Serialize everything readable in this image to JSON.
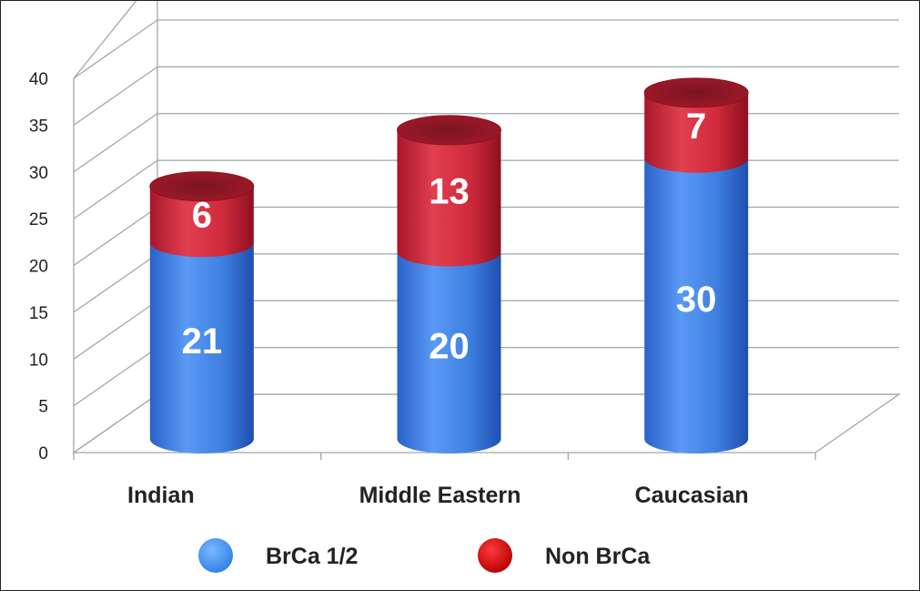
{
  "chart_data": {
    "type": "bar",
    "stacked": true,
    "style": "3d-cylinder",
    "categories": [
      "Indian",
      "Middle Eastern",
      "Caucasian"
    ],
    "series": [
      {
        "name": "BrCa 1/2",
        "values": [
          21,
          20,
          30
        ],
        "color": "#3e7fe0"
      },
      {
        "name": "Non BrCa",
        "values": [
          6,
          13,
          7
        ],
        "color": "#d0243c"
      }
    ],
    "value_labels": [
      [
        "21",
        "20",
        "30"
      ],
      [
        "6",
        "13",
        "7"
      ]
    ],
    "yticks": [
      "0",
      "5",
      "10",
      "15",
      "20",
      "25",
      "30",
      "35",
      "40"
    ],
    "ylim": [
      0,
      40
    ],
    "grid": true,
    "legend": {
      "position": "bottom",
      "marker_colors": [
        "#3e8ff0",
        "#cc0a0a"
      ]
    },
    "title": "",
    "xlabel": "",
    "ylabel": ""
  }
}
